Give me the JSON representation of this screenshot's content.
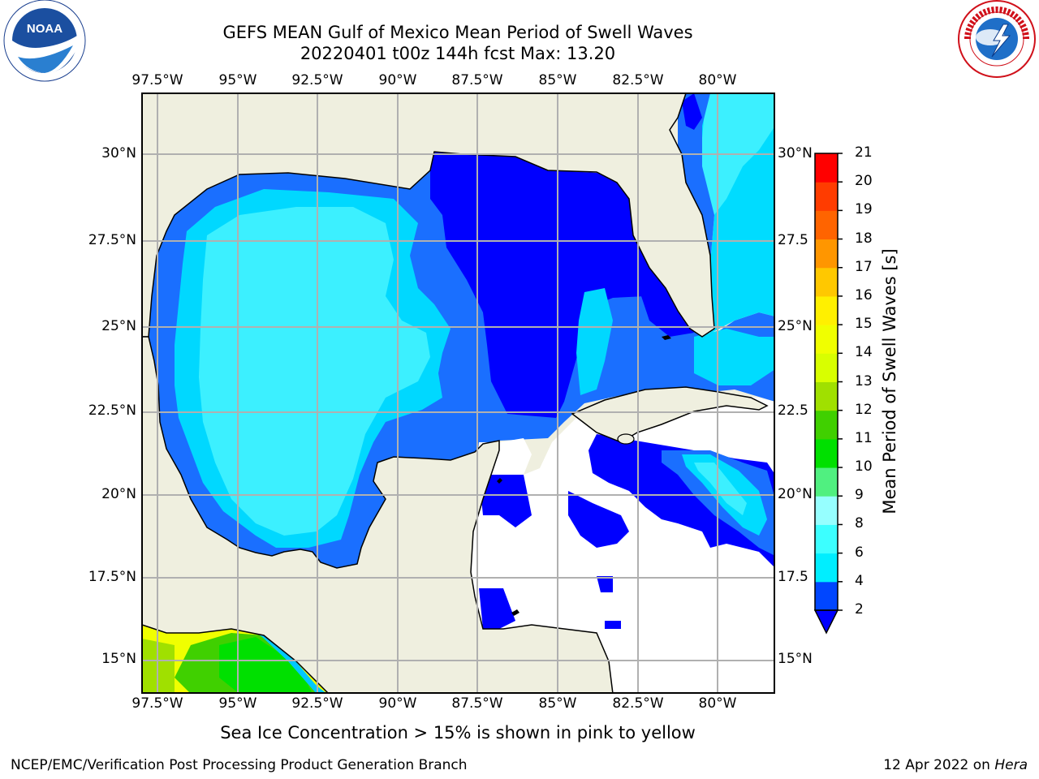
{
  "title": {
    "line1": "GEFS MEAN Gulf of Mexico Mean Period of Swell Waves",
    "line2": "20220401 t00z 144h fcst   Max: 13.20"
  },
  "map": {
    "longitude_labels": [
      "97.5°W",
      "95°W",
      "92.5°W",
      "90°W",
      "87.5°W",
      "85°W",
      "82.5°W",
      "80°W"
    ],
    "latitude_labels_left": [
      "30°N",
      "27.5°N",
      "25°N",
      "22.5°N",
      "20°N",
      "17.5°N",
      "15°N"
    ],
    "latitude_labels_right": [
      "30°N",
      "27.5",
      "25°N",
      "22.5",
      "20°N",
      "17.5",
      "15°N"
    ],
    "land_color": "#efefdf",
    "grid_color": "#b0b0b0"
  },
  "colorbar": {
    "label": "Mean Period of Swell Waves [s]",
    "ticks": [
      "2",
      "4",
      "6",
      "8",
      "9",
      "10",
      "11",
      "12",
      "13",
      "14",
      "15",
      "16",
      "17",
      "18",
      "19",
      "20",
      "21"
    ],
    "colors": [
      "#0046ff",
      "#00c8ff",
      "#00eeff",
      "#3cffff",
      "#96ffff",
      "#50f080",
      "#00e000",
      "#40d000",
      "#a0e000",
      "#d8ff00",
      "#f0ff00",
      "#fff000",
      "#ffc800",
      "#ff9600",
      "#ff6400",
      "#ff3c00",
      "#ff0000"
    ],
    "under_color": "#0000ff"
  },
  "note": "Sea Ice Concentration > 15% is shown in pink to yellow",
  "footer": {
    "credit": "NCEP/EMC/Verification Post Processing Product Generation Branch",
    "date": "12 Apr 2022 on",
    "machine": "Hera"
  },
  "logos": {
    "left_text": "NOAA",
    "left_ring": "NATIONAL OCEANIC AND ATMOSPHERIC ADMINISTRATION",
    "left_ring_bottom": "U.S. DEPARTMENT OF COMMERCE",
    "right_ring": "NATIONAL WEATHER SERVICE"
  }
}
